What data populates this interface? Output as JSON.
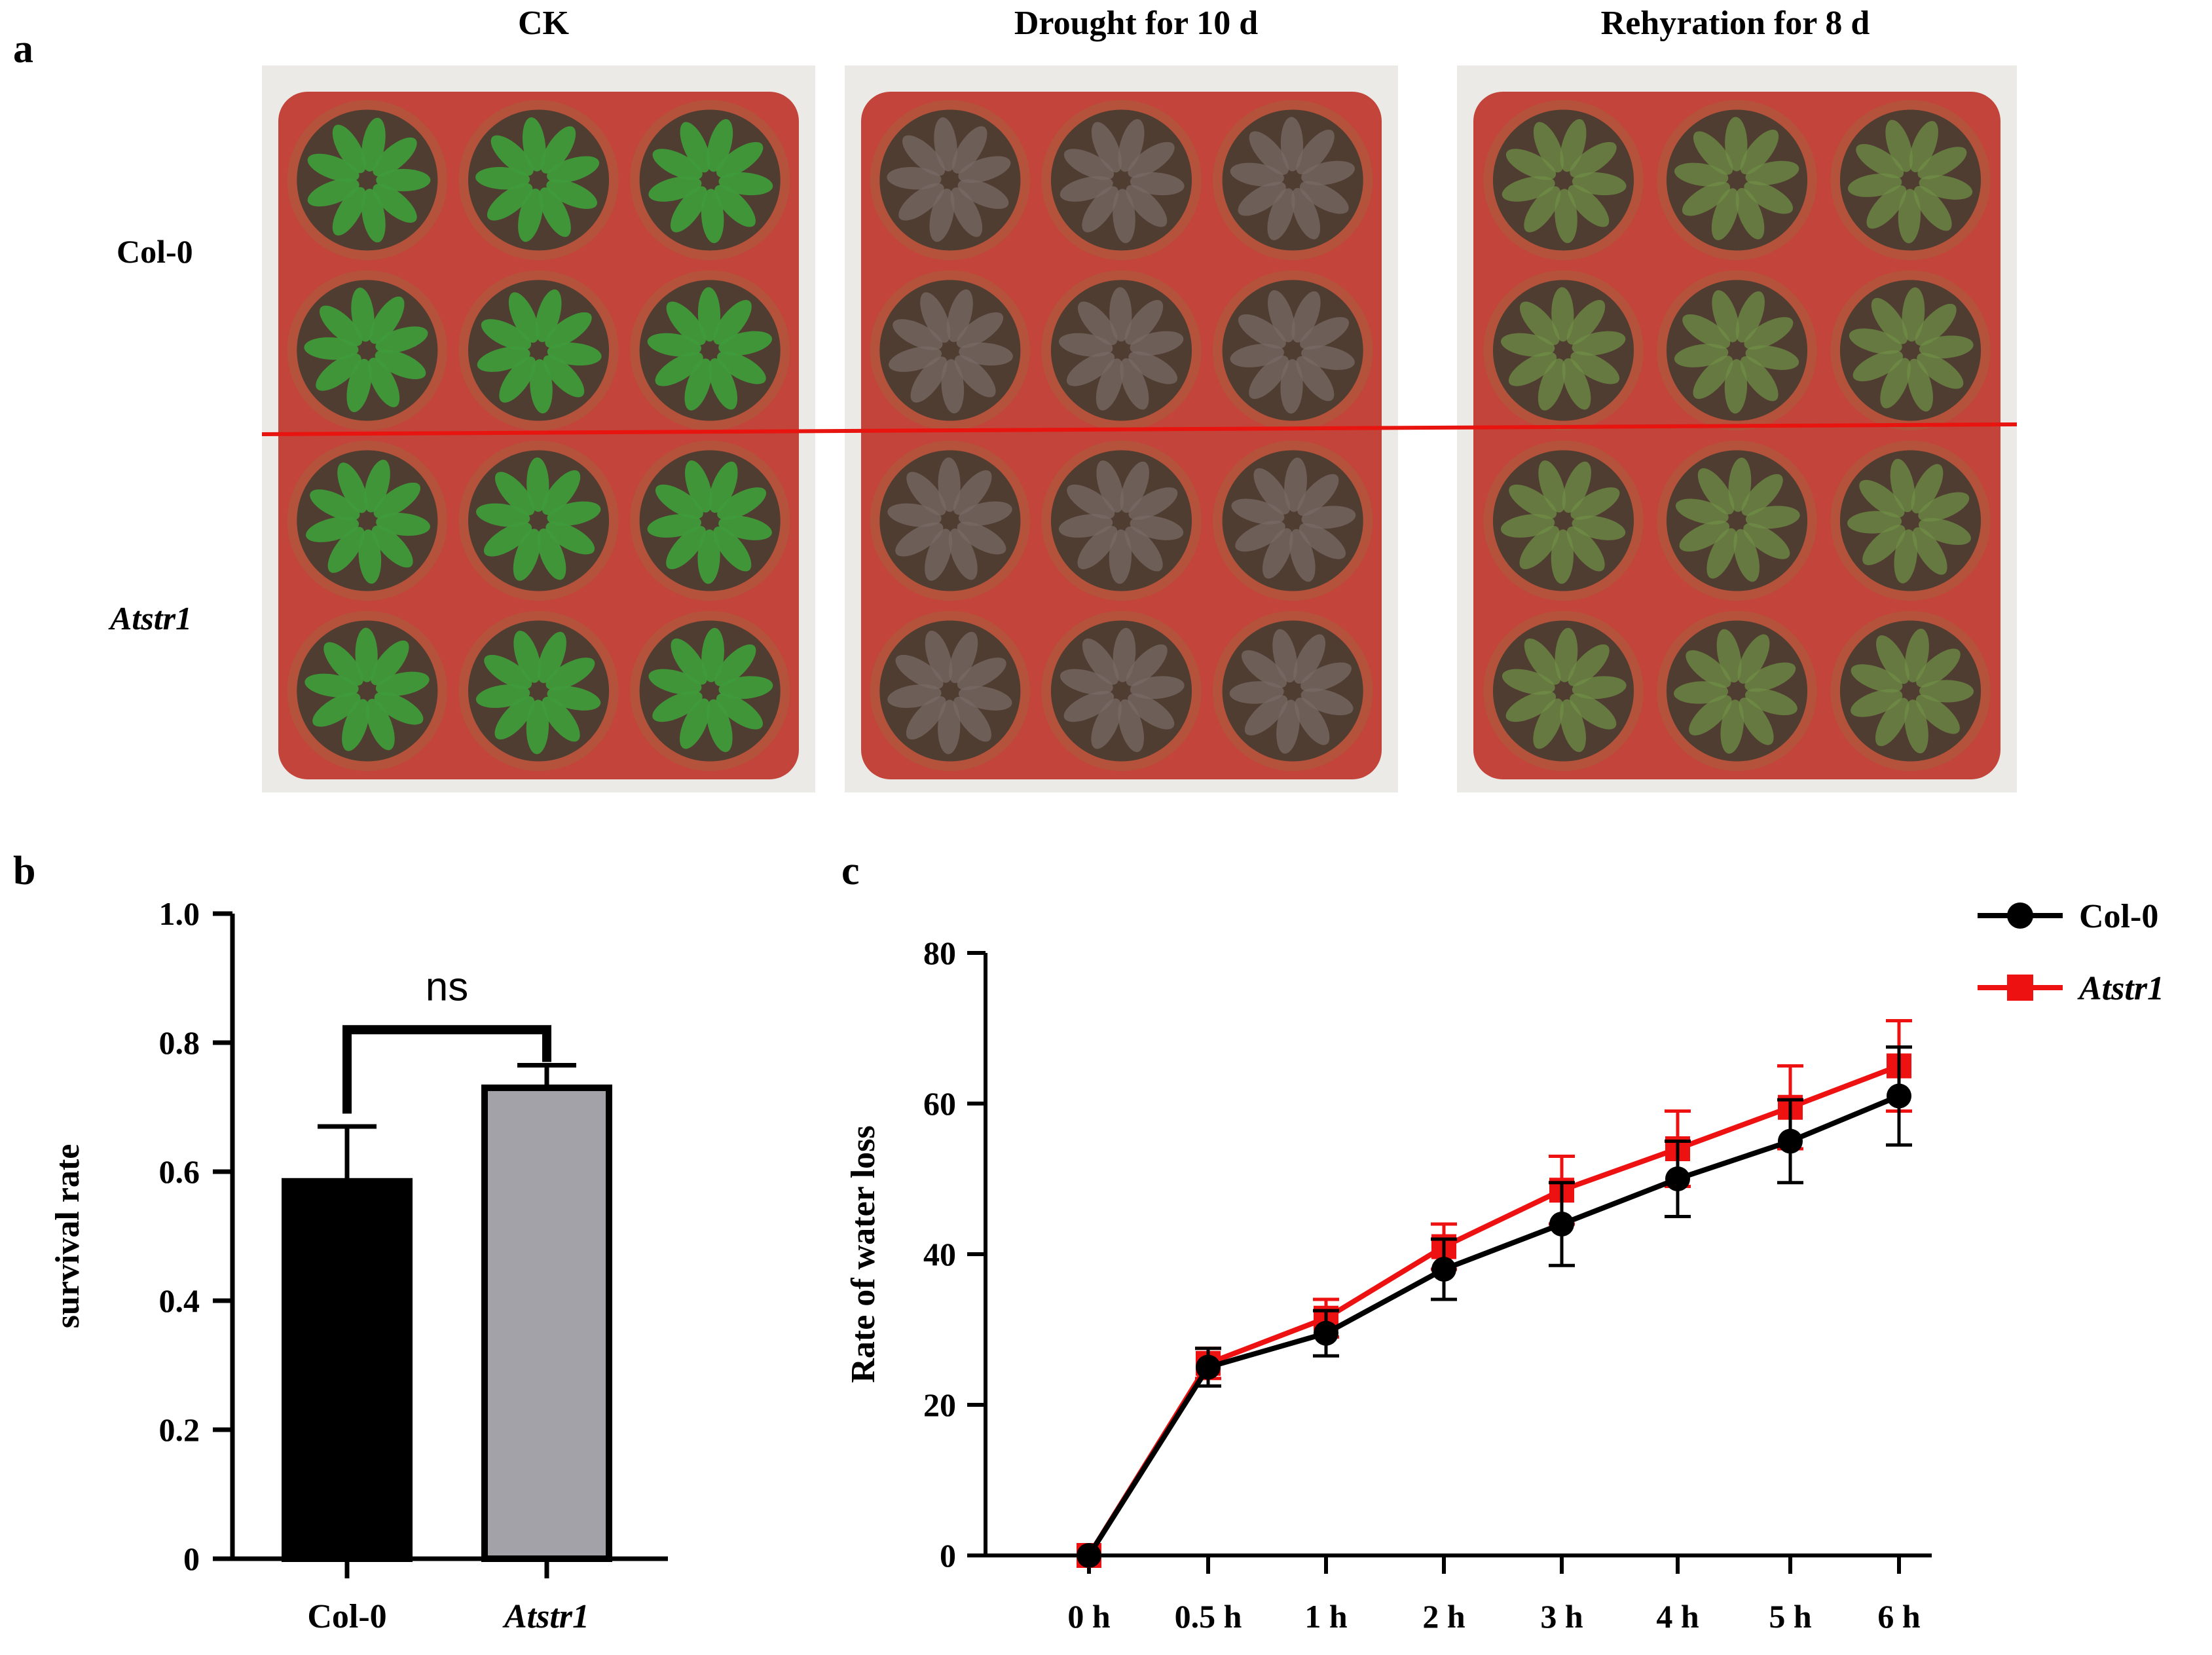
{
  "panel_a": {
    "letter": "a",
    "column_titles": [
      "CK",
      "Drought for 10 d",
      "Rehyration for 8 d"
    ],
    "row_labels": [
      "Col-0",
      "Atstr1"
    ],
    "colors": {
      "tray": "#c2443a",
      "pot": "#b5523b",
      "soil": "#4e3d30",
      "leaf_ck": "#3f9a3a",
      "leaf_drought": "#7a6a66",
      "leaf_rehyd": "#6f8e45",
      "divider": "#e8140f"
    }
  },
  "chart_data": [
    {
      "panel": "b",
      "type": "bar",
      "categories": [
        "Col-0",
        "Atstr1"
      ],
      "values": [
        0.585,
        0.73
      ],
      "errors": [
        0.085,
        0.035
      ],
      "bar_colors": [
        "#000000",
        "#a3a2a8"
      ],
      "ylabel": "survival rate",
      "ylim": [
        0,
        1.0
      ],
      "yticks": [
        "0",
        "0.2",
        "0.4",
        "0.6",
        "0.8",
        "1.0"
      ],
      "annotation": "ns"
    },
    {
      "panel": "c",
      "type": "line",
      "categories": [
        "0 h",
        "0.5 h",
        "1 h",
        "2 h",
        "3 h",
        "4 h",
        "5 h",
        "6 h"
      ],
      "ylabel": "Rate of water loss",
      "ylim": [
        0,
        80
      ],
      "yticks": [
        "0",
        "20",
        "40",
        "60",
        "80"
      ],
      "series": [
        {
          "name": "Col-0",
          "color": "#000000",
          "marker": "circle",
          "values": [
            0,
            25,
            29.5,
            38,
            44,
            50,
            55,
            61
          ],
          "errors": [
            0,
            2.5,
            3,
            4,
            5.5,
            5,
            5.5,
            6.5
          ]
        },
        {
          "name": "Atstr1",
          "color": "#ee1111",
          "marker": "square",
          "values": [
            0,
            25.5,
            31.5,
            41,
            48.5,
            54,
            59.5,
            65
          ],
          "errors": [
            0,
            2,
            2.5,
            3,
            4.5,
            5,
            5.5,
            6
          ]
        }
      ],
      "legend": "top-right"
    }
  ]
}
